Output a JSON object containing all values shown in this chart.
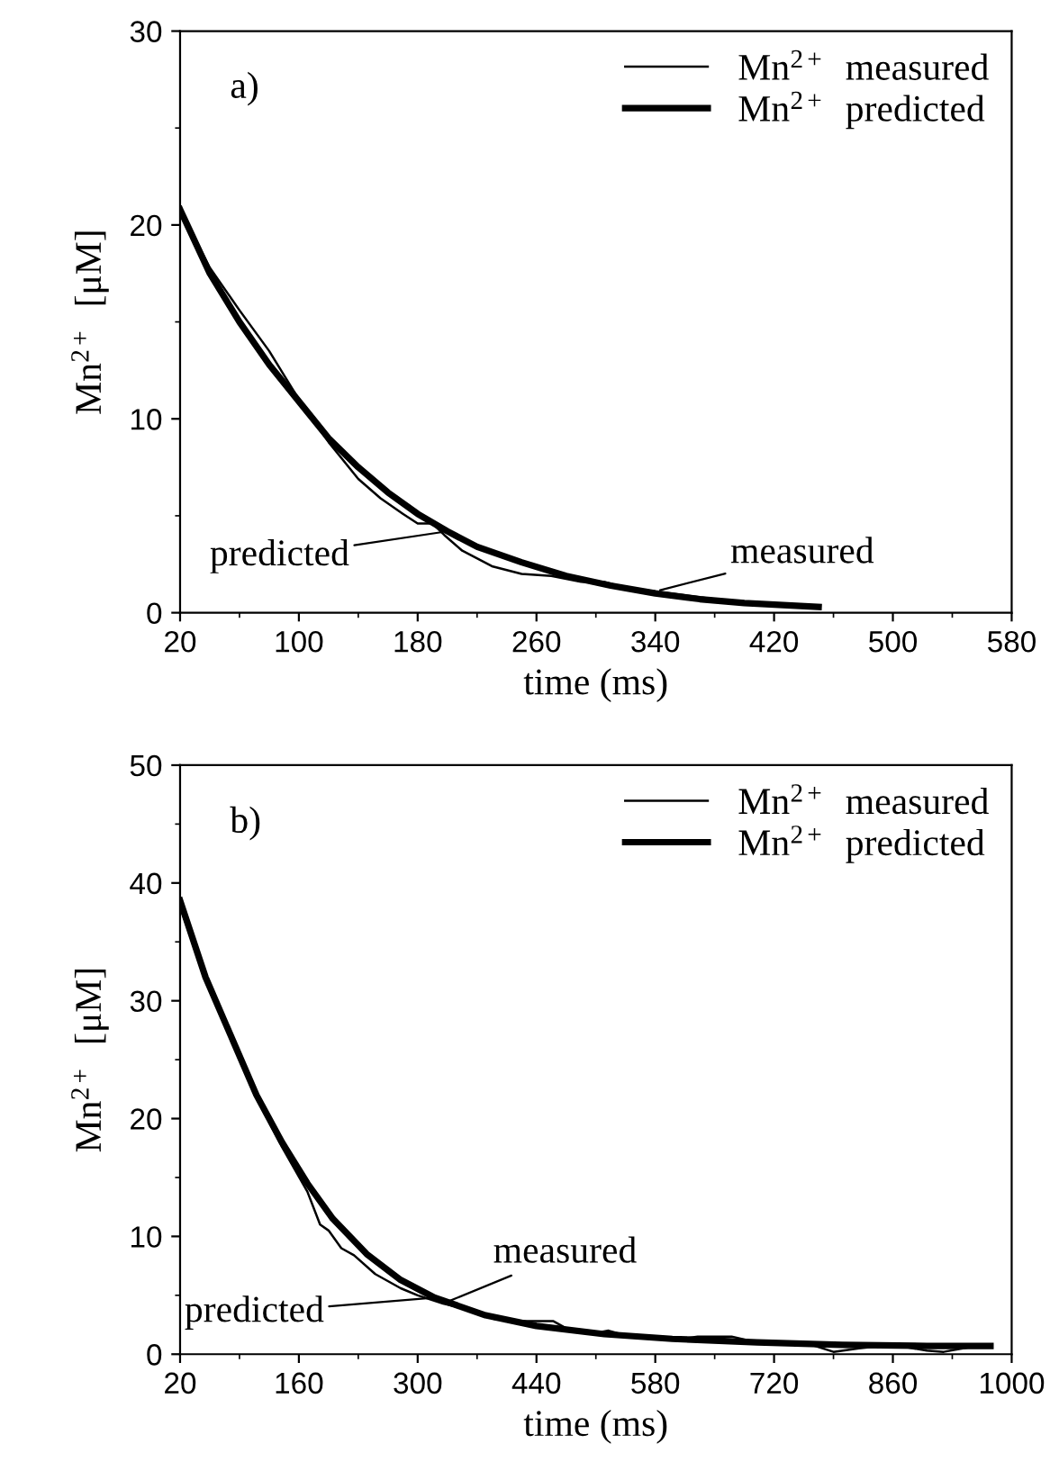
{
  "chart_data": [
    {
      "type": "line",
      "xlabel": "time (ms)",
      "ylabel": "Mn$^{2+}$  [μM]",
      "xlim": [
        20,
        580
      ],
      "xticks": [
        20,
        100,
        180,
        260,
        340,
        420,
        500,
        580
      ],
      "ylim": [
        0,
        30
      ],
      "yticks": [
        0,
        10,
        20,
        30
      ],
      "legend": "top right",
      "grid": false,
      "annotations": [
        "a)",
        {
          "text": "predicted",
          "x": 200,
          "y": 4.2
        },
        {
          "text": "measured",
          "x": 340,
          "y": 1.1
        }
      ],
      "series": [
        {
          "name": "Mn$^{2+}$  measured",
          "color": "#000000",
          "x": [
            20,
            40,
            60,
            80,
            100,
            120,
            140,
            155,
            170,
            180,
            190,
            198,
            210,
            230,
            250,
            270,
            290,
            305,
            320,
            340,
            360,
            380,
            400,
            430,
            450
          ],
          "values": [
            20.8,
            17.8,
            15.6,
            13.5,
            11.0,
            8.8,
            6.9,
            5.9,
            5.1,
            4.6,
            4.6,
            4.0,
            3.2,
            2.4,
            2.0,
            1.9,
            1.6,
            1.6,
            1.3,
            1.1,
            0.9,
            0.7,
            0.5,
            0.4,
            0.3
          ]
        },
        {
          "name": "Mn$^{2+}$  predicted",
          "color": "#000000",
          "x": [
            20,
            40,
            60,
            80,
            100,
            120,
            140,
            160,
            180,
            200,
            220,
            250,
            280,
            310,
            340,
            370,
            400,
            450
          ],
          "values": [
            20.8,
            17.5,
            15.0,
            12.8,
            10.9,
            9.0,
            7.5,
            6.2,
            5.1,
            4.2,
            3.4,
            2.6,
            1.9,
            1.4,
            1.0,
            0.7,
            0.5,
            0.3
          ]
        }
      ]
    },
    {
      "type": "line",
      "xlabel": "time (ms)",
      "ylabel": "Mn$^{2+}$  [μM]",
      "xlim": [
        20,
        1000
      ],
      "xticks": [
        20,
        160,
        300,
        440,
        580,
        720,
        860,
        1000
      ],
      "ylim": [
        0,
        50
      ],
      "yticks": [
        0,
        10,
        20,
        30,
        40,
        50
      ],
      "legend": "top right",
      "grid": false,
      "annotations": [
        "b)",
        {
          "text": "measured",
          "x": 330,
          "y": 4.3
        },
        {
          "text": "predicted",
          "x": 320,
          "y": 4.8
        }
      ],
      "series": [
        {
          "name": "Mn$^{2+}$  measured",
          "color": "#000000",
          "x": [
            20,
            50,
            80,
            110,
            140,
            170,
            185,
            195,
            210,
            225,
            250,
            280,
            300,
            330,
            360,
            390,
            420,
            460,
            480,
            510,
            525,
            550,
            600,
            630,
            670,
            700,
            760,
            790,
            820,
            860,
            900,
            920,
            950,
            975
          ],
          "values": [
            38,
            31.8,
            26.8,
            21.8,
            17.6,
            13.8,
            11,
            10.5,
            9,
            8.4,
            6.8,
            5.6,
            5.0,
            4.3,
            3.8,
            3.0,
            2.8,
            2.8,
            2.0,
            1.8,
            2.0,
            1.5,
            1.2,
            1.5,
            1.5,
            1.0,
            0.9,
            0.2,
            0.5,
            0.8,
            0.3,
            0.2,
            0.6,
            0.6
          ]
        },
        {
          "name": "Mn$^{2+}$  predicted",
          "color": "#000000",
          "x": [
            20,
            50,
            80,
            110,
            140,
            170,
            200,
            240,
            280,
            320,
            380,
            440,
            520,
            600,
            700,
            800,
            900,
            975
          ],
          "values": [
            38.5,
            32,
            27,
            22,
            18,
            14.5,
            11.5,
            8.5,
            6.3,
            4.8,
            3.3,
            2.4,
            1.7,
            1.3,
            1.0,
            0.8,
            0.7,
            0.7
          ]
        }
      ]
    }
  ]
}
